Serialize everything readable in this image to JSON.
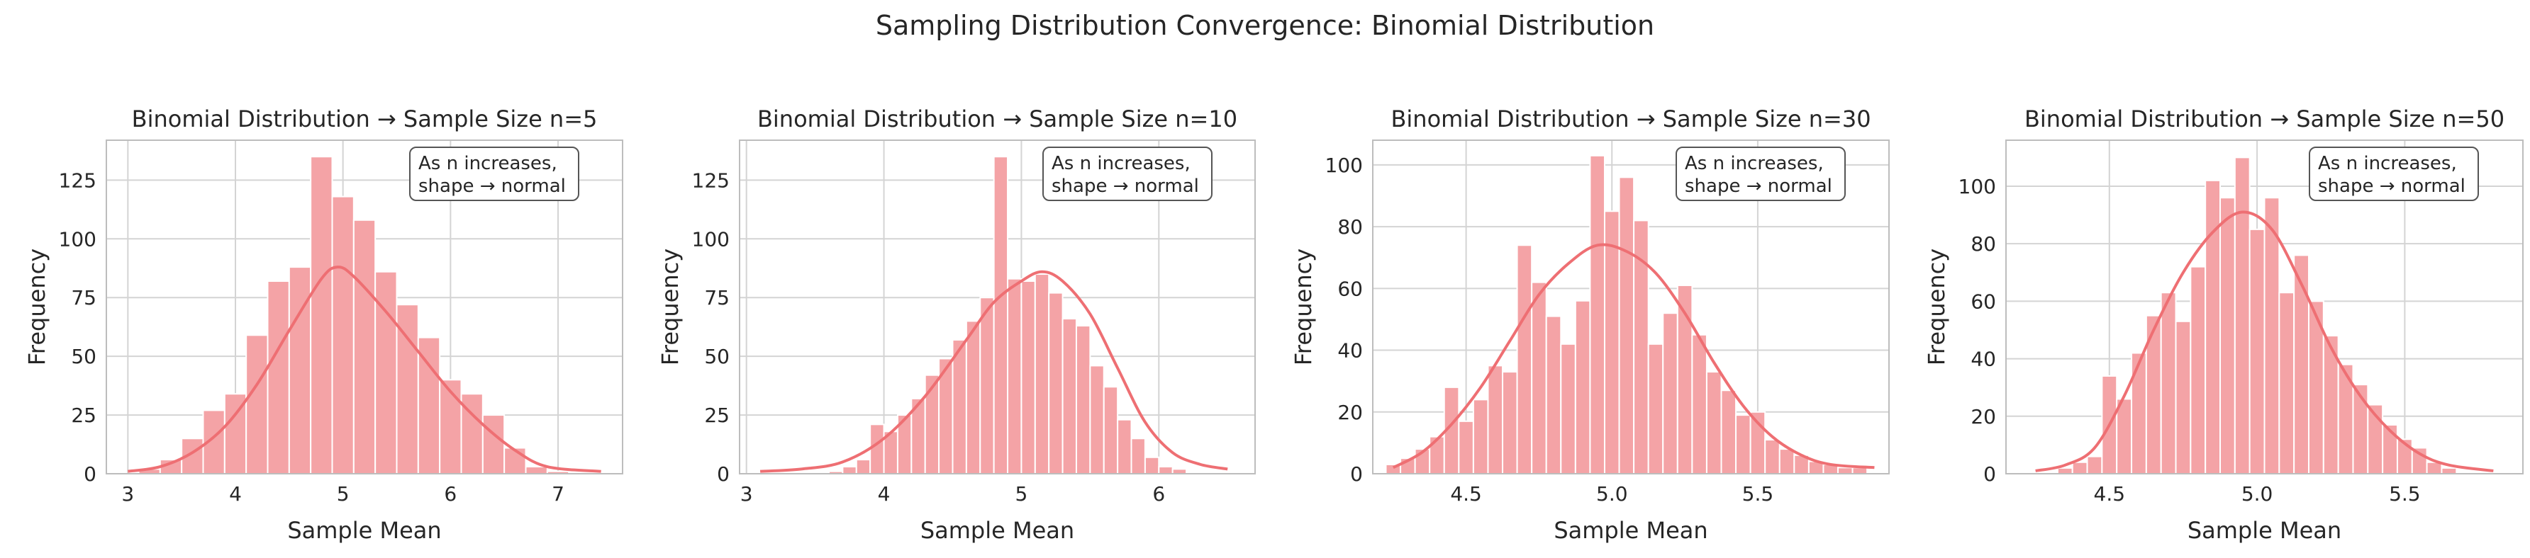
{
  "figure": {
    "suptitle": "Sampling Distribution Convergence: Binomial Distribution"
  },
  "style": {
    "bar_fill": "#f4a3a6",
    "bar_edge": "#ffffff",
    "kde_color": "#ee6f73",
    "grid_color": "#d4d4d4",
    "spine_color": "#bdbdbd"
  },
  "chart_data": [
    {
      "type": "bar",
      "title": "Binomial Distribution → Sample Size n=5",
      "xlabel": "Sample Mean",
      "ylabel": "Frequency",
      "annotation": [
        "As n increases,",
        "shape → normal"
      ],
      "xlim": [
        2.8,
        7.6
      ],
      "ylim": [
        0,
        142
      ],
      "xticks": [
        3,
        4,
        5,
        6,
        7
      ],
      "yticks": [
        0,
        25,
        50,
        75,
        100,
        125
      ],
      "bins": [
        {
          "x": 3.2,
          "v": 2
        },
        {
          "x": 3.4,
          "v": 6
        },
        {
          "x": 3.6,
          "v": 15
        },
        {
          "x": 3.8,
          "v": 27
        },
        {
          "x": 4.0,
          "v": 34
        },
        {
          "x": 4.2,
          "v": 59
        },
        {
          "x": 4.4,
          "v": 82
        },
        {
          "x": 4.6,
          "v": 88
        },
        {
          "x": 4.8,
          "v": 135
        },
        {
          "x": 5.0,
          "v": 118
        },
        {
          "x": 5.2,
          "v": 108
        },
        {
          "x": 5.4,
          "v": 86
        },
        {
          "x": 5.6,
          "v": 72
        },
        {
          "x": 5.8,
          "v": 58
        },
        {
          "x": 6.0,
          "v": 40
        },
        {
          "x": 6.2,
          "v": 34
        },
        {
          "x": 6.4,
          "v": 25
        },
        {
          "x": 6.6,
          "v": 11
        },
        {
          "x": 6.8,
          "v": 3
        },
        {
          "x": 7.0,
          "v": 1
        }
      ],
      "bin_width": 0.2,
      "kde": [
        [
          3.0,
          1
        ],
        [
          3.3,
          3
        ],
        [
          3.6,
          9
        ],
        [
          3.9,
          20
        ],
        [
          4.2,
          38
        ],
        [
          4.5,
          61
        ],
        [
          4.8,
          83
        ],
        [
          4.95,
          88
        ],
        [
          5.1,
          84
        ],
        [
          5.4,
          69
        ],
        [
          5.7,
          52
        ],
        [
          6.0,
          35
        ],
        [
          6.3,
          21
        ],
        [
          6.6,
          10
        ],
        [
          6.9,
          3
        ],
        [
          7.4,
          1
        ]
      ]
    },
    {
      "type": "bar",
      "title": "Binomial Distribution → Sample Size n=10",
      "xlabel": "Sample Mean",
      "ylabel": "Frequency",
      "annotation": [
        "As n increases,",
        "shape → normal"
      ],
      "xlim": [
        2.95,
        6.7
      ],
      "ylim": [
        0,
        142
      ],
      "xticks": [
        3,
        4,
        5,
        6
      ],
      "yticks": [
        0,
        25,
        50,
        75,
        100,
        125
      ],
      "bins": [
        {
          "x": 3.65,
          "v": 1
        },
        {
          "x": 3.75,
          "v": 3
        },
        {
          "x": 3.85,
          "v": 6
        },
        {
          "x": 3.95,
          "v": 21
        },
        {
          "x": 4.05,
          "v": 18
        },
        {
          "x": 4.15,
          "v": 25
        },
        {
          "x": 4.25,
          "v": 32
        },
        {
          "x": 4.35,
          "v": 42
        },
        {
          "x": 4.45,
          "v": 49
        },
        {
          "x": 4.55,
          "v": 57
        },
        {
          "x": 4.65,
          "v": 65
        },
        {
          "x": 4.75,
          "v": 75
        },
        {
          "x": 4.85,
          "v": 135
        },
        {
          "x": 4.95,
          "v": 83
        },
        {
          "x": 5.05,
          "v": 82
        },
        {
          "x": 5.15,
          "v": 85
        },
        {
          "x": 5.25,
          "v": 77
        },
        {
          "x": 5.35,
          "v": 66
        },
        {
          "x": 5.45,
          "v": 63
        },
        {
          "x": 5.55,
          "v": 46
        },
        {
          "x": 5.65,
          "v": 37
        },
        {
          "x": 5.75,
          "v": 23
        },
        {
          "x": 5.85,
          "v": 15
        },
        {
          "x": 5.95,
          "v": 7
        },
        {
          "x": 6.05,
          "v": 3
        },
        {
          "x": 6.15,
          "v": 2
        }
      ],
      "bin_width": 0.1,
      "kde": [
        [
          3.1,
          1
        ],
        [
          3.4,
          2
        ],
        [
          3.7,
          5
        ],
        [
          4.0,
          15
        ],
        [
          4.3,
          33
        ],
        [
          4.6,
          57
        ],
        [
          4.8,
          73
        ],
        [
          5.0,
          82
        ],
        [
          5.15,
          86
        ],
        [
          5.3,
          82
        ],
        [
          5.5,
          68
        ],
        [
          5.7,
          45
        ],
        [
          5.9,
          22
        ],
        [
          6.1,
          9
        ],
        [
          6.3,
          4
        ],
        [
          6.5,
          2
        ]
      ]
    },
    {
      "type": "bar",
      "title": "Binomial Distribution → Sample Size n=30",
      "xlabel": "Sample Mean",
      "ylabel": "Frequency",
      "annotation": [
        "As n increases,",
        "shape → normal"
      ],
      "xlim": [
        4.18,
        5.95
      ],
      "ylim": [
        0,
        108
      ],
      "xticks": [
        4.5,
        5.0,
        5.5
      ],
      "yticks": [
        0,
        20,
        40,
        60,
        80,
        100
      ],
      "bins": [
        {
          "x": 4.25,
          "v": 3
        },
        {
          "x": 4.3,
          "v": 5
        },
        {
          "x": 4.35,
          "v": 8
        },
        {
          "x": 4.4,
          "v": 12
        },
        {
          "x": 4.45,
          "v": 28
        },
        {
          "x": 4.5,
          "v": 17
        },
        {
          "x": 4.55,
          "v": 24
        },
        {
          "x": 4.6,
          "v": 35
        },
        {
          "x": 4.65,
          "v": 33
        },
        {
          "x": 4.7,
          "v": 74
        },
        {
          "x": 4.75,
          "v": 62
        },
        {
          "x": 4.8,
          "v": 51
        },
        {
          "x": 4.85,
          "v": 42
        },
        {
          "x": 4.9,
          "v": 56
        },
        {
          "x": 4.95,
          "v": 103
        },
        {
          "x": 5.0,
          "v": 85
        },
        {
          "x": 5.05,
          "v": 96
        },
        {
          "x": 5.1,
          "v": 82
        },
        {
          "x": 5.15,
          "v": 42
        },
        {
          "x": 5.2,
          "v": 52
        },
        {
          "x": 5.25,
          "v": 61
        },
        {
          "x": 5.3,
          "v": 45
        },
        {
          "x": 5.35,
          "v": 33
        },
        {
          "x": 5.4,
          "v": 27
        },
        {
          "x": 5.45,
          "v": 19
        },
        {
          "x": 5.5,
          "v": 20
        },
        {
          "x": 5.55,
          "v": 11
        },
        {
          "x": 5.6,
          "v": 8
        },
        {
          "x": 5.65,
          "v": 6
        },
        {
          "x": 5.7,
          "v": 4
        },
        {
          "x": 5.75,
          "v": 3
        },
        {
          "x": 5.8,
          "v": 2
        },
        {
          "x": 5.85,
          "v": 2
        }
      ],
      "bin_width": 0.05,
      "kde": [
        [
          4.25,
          2
        ],
        [
          4.35,
          7
        ],
        [
          4.45,
          16
        ],
        [
          4.55,
          28
        ],
        [
          4.65,
          43
        ],
        [
          4.75,
          58
        ],
        [
          4.85,
          68
        ],
        [
          4.95,
          74
        ],
        [
          5.05,
          72
        ],
        [
          5.15,
          65
        ],
        [
          5.25,
          52
        ],
        [
          5.35,
          36
        ],
        [
          5.45,
          22
        ],
        [
          5.55,
          12
        ],
        [
          5.65,
          6
        ],
        [
          5.75,
          3
        ],
        [
          5.9,
          2
        ]
      ]
    },
    {
      "type": "bar",
      "title": "Binomial Distribution → Sample Size n=50",
      "xlabel": "Sample Mean",
      "ylabel": "Frequency",
      "annotation": [
        "As n increases,",
        "shape → normal"
      ],
      "xlim": [
        4.15,
        5.9
      ],
      "ylim": [
        0,
        116
      ],
      "xticks": [
        4.5,
        5.0,
        5.5
      ],
      "yticks": [
        0,
        20,
        40,
        60,
        80,
        100
      ],
      "bins": [
        {
          "x": 4.35,
          "v": 2
        },
        {
          "x": 4.4,
          "v": 4
        },
        {
          "x": 4.45,
          "v": 6
        },
        {
          "x": 4.5,
          "v": 34
        },
        {
          "x": 4.55,
          "v": 26
        },
        {
          "x": 4.6,
          "v": 42
        },
        {
          "x": 4.65,
          "v": 55
        },
        {
          "x": 4.7,
          "v": 63
        },
        {
          "x": 4.75,
          "v": 53
        },
        {
          "x": 4.8,
          "v": 72
        },
        {
          "x": 4.85,
          "v": 102
        },
        {
          "x": 4.9,
          "v": 96
        },
        {
          "x": 4.95,
          "v": 110
        },
        {
          "x": 5.0,
          "v": 85
        },
        {
          "x": 5.05,
          "v": 96
        },
        {
          "x": 5.1,
          "v": 63
        },
        {
          "x": 5.15,
          "v": 76
        },
        {
          "x": 5.2,
          "v": 60
        },
        {
          "x": 5.25,
          "v": 48
        },
        {
          "x": 5.3,
          "v": 38
        },
        {
          "x": 5.35,
          "v": 31
        },
        {
          "x": 5.4,
          "v": 24
        },
        {
          "x": 5.45,
          "v": 17
        },
        {
          "x": 5.5,
          "v": 12
        },
        {
          "x": 5.55,
          "v": 9
        },
        {
          "x": 5.6,
          "v": 4
        },
        {
          "x": 5.65,
          "v": 2
        }
      ],
      "bin_width": 0.05,
      "kde": [
        [
          4.25,
          1
        ],
        [
          4.35,
          3
        ],
        [
          4.45,
          9
        ],
        [
          4.55,
          27
        ],
        [
          4.65,
          50
        ],
        [
          4.75,
          70
        ],
        [
          4.85,
          84
        ],
        [
          4.95,
          91
        ],
        [
          5.05,
          85
        ],
        [
          5.15,
          66
        ],
        [
          5.25,
          44
        ],
        [
          5.35,
          27
        ],
        [
          5.45,
          15
        ],
        [
          5.55,
          7
        ],
        [
          5.65,
          3
        ],
        [
          5.8,
          1
        ]
      ]
    }
  ]
}
